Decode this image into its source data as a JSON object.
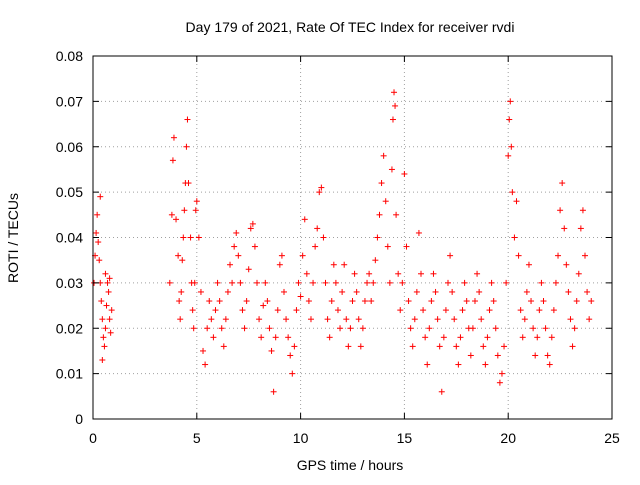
{
  "chart_data": {
    "type": "scatter",
    "title": "Day 179 of 2021, Rate Of TEC Index for receiver rvdi",
    "xlabel": "GPS time / hours",
    "ylabel": "ROTI / TECUs",
    "xlim": [
      0,
      25
    ],
    "ylim": [
      0,
      0.08
    ],
    "x_ticks": [
      0,
      5,
      10,
      15,
      20,
      25
    ],
    "x_tick_labels": [
      "0",
      "5",
      "10",
      "15",
      "20",
      "25"
    ],
    "y_ticks": [
      0,
      0.01,
      0.02,
      0.03,
      0.04,
      0.05,
      0.06,
      0.07,
      0.08
    ],
    "y_tick_labels": [
      "0",
      "0.01",
      "0.02",
      "0.03",
      "0.04",
      "0.05",
      "0.06",
      "0.07",
      "0.08"
    ],
    "grid": true,
    "marker": "+",
    "marker_color": "#ff0000",
    "series": [
      {
        "name": "ROTI",
        "points": [
          [
            0.05,
            0.03
          ],
          [
            0.1,
            0.036
          ],
          [
            0.15,
            0.041
          ],
          [
            0.2,
            0.045
          ],
          [
            0.25,
            0.039
          ],
          [
            0.3,
            0.035
          ],
          [
            0.35,
            0.03
          ],
          [
            0.4,
            0.026
          ],
          [
            0.45,
            0.022
          ],
          [
            0.5,
            0.018
          ],
          [
            0.55,
            0.016
          ],
          [
            0.6,
            0.02
          ],
          [
            0.65,
            0.025
          ],
          [
            0.7,
            0.03
          ],
          [
            0.75,
            0.028
          ],
          [
            0.8,
            0.022
          ],
          [
            0.85,
            0.019
          ],
          [
            0.9,
            0.024
          ],
          [
            0.35,
            0.049
          ],
          [
            0.45,
            0.013
          ],
          [
            0.6,
            0.032
          ],
          [
            0.8,
            0.031
          ],
          [
            3.7,
            0.03
          ],
          [
            3.8,
            0.045
          ],
          [
            3.85,
            0.057
          ],
          [
            3.9,
            0.062
          ],
          [
            4.0,
            0.044
          ],
          [
            4.1,
            0.036
          ],
          [
            4.15,
            0.026
          ],
          [
            4.2,
            0.022
          ],
          [
            4.25,
            0.028
          ],
          [
            4.3,
            0.035
          ],
          [
            4.35,
            0.04
          ],
          [
            4.4,
            0.046
          ],
          [
            4.45,
            0.052
          ],
          [
            4.5,
            0.06
          ],
          [
            4.55,
            0.066
          ],
          [
            4.6,
            0.052
          ],
          [
            4.7,
            0.04
          ],
          [
            4.75,
            0.03
          ],
          [
            4.8,
            0.024
          ],
          [
            4.85,
            0.02
          ],
          [
            4.9,
            0.03
          ],
          [
            4.95,
            0.046
          ],
          [
            5.0,
            0.048
          ],
          [
            5.1,
            0.04
          ],
          [
            5.2,
            0.028
          ],
          [
            5.3,
            0.015
          ],
          [
            5.4,
            0.012
          ],
          [
            5.5,
            0.02
          ],
          [
            5.6,
            0.026
          ],
          [
            5.7,
            0.022
          ],
          [
            5.8,
            0.018
          ],
          [
            5.9,
            0.024
          ],
          [
            6.0,
            0.03
          ],
          [
            6.1,
            0.026
          ],
          [
            6.2,
            0.02
          ],
          [
            6.3,
            0.016
          ],
          [
            6.4,
            0.022
          ],
          [
            6.5,
            0.028
          ],
          [
            6.6,
            0.034
          ],
          [
            6.7,
            0.03
          ],
          [
            6.8,
            0.038
          ],
          [
            6.9,
            0.041
          ],
          [
            7.0,
            0.036
          ],
          [
            7.1,
            0.03
          ],
          [
            7.2,
            0.024
          ],
          [
            7.3,
            0.02
          ],
          [
            7.4,
            0.026
          ],
          [
            7.5,
            0.033
          ],
          [
            7.6,
            0.042
          ],
          [
            7.7,
            0.043
          ],
          [
            7.8,
            0.038
          ],
          [
            7.9,
            0.03
          ],
          [
            8.0,
            0.022
          ],
          [
            8.1,
            0.018
          ],
          [
            8.2,
            0.025
          ],
          [
            8.3,
            0.03
          ],
          [
            8.4,
            0.026
          ],
          [
            8.5,
            0.02
          ],
          [
            8.6,
            0.015
          ],
          [
            8.7,
            0.006
          ],
          [
            8.8,
            0.018
          ],
          [
            8.9,
            0.024
          ],
          [
            9.0,
            0.034
          ],
          [
            9.1,
            0.036
          ],
          [
            9.2,
            0.028
          ],
          [
            9.3,
            0.022
          ],
          [
            9.4,
            0.018
          ],
          [
            9.5,
            0.014
          ],
          [
            9.6,
            0.01
          ],
          [
            9.7,
            0.016
          ],
          [
            9.8,
            0.024
          ],
          [
            9.9,
            0.03
          ],
          [
            10.0,
            0.027
          ],
          [
            10.1,
            0.036
          ],
          [
            10.2,
            0.044
          ],
          [
            10.3,
            0.032
          ],
          [
            10.4,
            0.026
          ],
          [
            10.5,
            0.022
          ],
          [
            10.6,
            0.03
          ],
          [
            10.7,
            0.038
          ],
          [
            10.8,
            0.042
          ],
          [
            10.9,
            0.05
          ],
          [
            11.0,
            0.051
          ],
          [
            11.1,
            0.04
          ],
          [
            11.2,
            0.03
          ],
          [
            11.3,
            0.022
          ],
          [
            11.4,
            0.018
          ],
          [
            11.5,
            0.026
          ],
          [
            11.6,
            0.034
          ],
          [
            11.7,
            0.03
          ],
          [
            11.8,
            0.024
          ],
          [
            11.9,
            0.02
          ],
          [
            12.0,
            0.028
          ],
          [
            12.1,
            0.034
          ],
          [
            12.2,
            0.022
          ],
          [
            12.3,
            0.016
          ],
          [
            12.4,
            0.02
          ],
          [
            12.5,
            0.026
          ],
          [
            12.6,
            0.032
          ],
          [
            12.7,
            0.028
          ],
          [
            12.8,
            0.022
          ],
          [
            12.9,
            0.016
          ],
          [
            13.0,
            0.02
          ],
          [
            13.1,
            0.026
          ],
          [
            13.2,
            0.03
          ],
          [
            13.3,
            0.032
          ],
          [
            13.4,
            0.026
          ],
          [
            13.5,
            0.03
          ],
          [
            13.6,
            0.035
          ],
          [
            13.7,
            0.04
          ],
          [
            13.8,
            0.045
          ],
          [
            13.9,
            0.052
          ],
          [
            14.0,
            0.058
          ],
          [
            14.1,
            0.048
          ],
          [
            14.2,
            0.038
          ],
          [
            14.3,
            0.03
          ],
          [
            14.4,
            0.055
          ],
          [
            14.45,
            0.066
          ],
          [
            14.5,
            0.072
          ],
          [
            14.55,
            0.069
          ],
          [
            14.6,
            0.045
          ],
          [
            14.7,
            0.032
          ],
          [
            14.8,
            0.024
          ],
          [
            14.9,
            0.03
          ],
          [
            15.0,
            0.054
          ],
          [
            15.1,
            0.038
          ],
          [
            15.2,
            0.026
          ],
          [
            15.3,
            0.02
          ],
          [
            15.4,
            0.016
          ],
          [
            15.5,
            0.022
          ],
          [
            15.6,
            0.028
          ],
          [
            15.7,
            0.041
          ],
          [
            15.8,
            0.032
          ],
          [
            15.9,
            0.024
          ],
          [
            16.0,
            0.018
          ],
          [
            16.1,
            0.012
          ],
          [
            16.2,
            0.02
          ],
          [
            16.3,
            0.026
          ],
          [
            16.4,
            0.032
          ],
          [
            16.5,
            0.028
          ],
          [
            16.6,
            0.022
          ],
          [
            16.7,
            0.016
          ],
          [
            16.8,
            0.006
          ],
          [
            16.9,
            0.018
          ],
          [
            17.0,
            0.024
          ],
          [
            17.1,
            0.03
          ],
          [
            17.2,
            0.036
          ],
          [
            17.3,
            0.028
          ],
          [
            17.4,
            0.022
          ],
          [
            17.5,
            0.016
          ],
          [
            17.6,
            0.012
          ],
          [
            17.7,
            0.018
          ],
          [
            17.8,
            0.024
          ],
          [
            17.9,
            0.03
          ],
          [
            18.0,
            0.026
          ],
          [
            18.1,
            0.02
          ],
          [
            18.2,
            0.014
          ],
          [
            18.3,
            0.02
          ],
          [
            18.4,
            0.026
          ],
          [
            18.5,
            0.032
          ],
          [
            18.6,
            0.028
          ],
          [
            18.7,
            0.022
          ],
          [
            18.8,
            0.016
          ],
          [
            18.9,
            0.012
          ],
          [
            19.0,
            0.018
          ],
          [
            19.1,
            0.024
          ],
          [
            19.2,
            0.03
          ],
          [
            19.3,
            0.026
          ],
          [
            19.4,
            0.02
          ],
          [
            19.5,
            0.014
          ],
          [
            19.6,
            0.008
          ],
          [
            19.7,
            0.01
          ],
          [
            19.8,
            0.016
          ],
          [
            19.9,
            0.03
          ],
          [
            20.0,
            0.058
          ],
          [
            20.05,
            0.066
          ],
          [
            20.1,
            0.07
          ],
          [
            20.15,
            0.06
          ],
          [
            20.2,
            0.05
          ],
          [
            20.3,
            0.04
          ],
          [
            20.4,
            0.048
          ],
          [
            20.5,
            0.036
          ],
          [
            20.6,
            0.024
          ],
          [
            20.7,
            0.018
          ],
          [
            20.8,
            0.022
          ],
          [
            20.9,
            0.028
          ],
          [
            21.0,
            0.034
          ],
          [
            21.1,
            0.026
          ],
          [
            21.2,
            0.02
          ],
          [
            21.3,
            0.014
          ],
          [
            21.4,
            0.018
          ],
          [
            21.5,
            0.024
          ],
          [
            21.6,
            0.03
          ],
          [
            21.7,
            0.026
          ],
          [
            21.8,
            0.02
          ],
          [
            21.9,
            0.014
          ],
          [
            22.0,
            0.012
          ],
          [
            22.1,
            0.018
          ],
          [
            22.2,
            0.024
          ],
          [
            22.3,
            0.03
          ],
          [
            22.4,
            0.036
          ],
          [
            22.5,
            0.046
          ],
          [
            22.6,
            0.052
          ],
          [
            22.7,
            0.042
          ],
          [
            22.8,
            0.034
          ],
          [
            22.9,
            0.028
          ],
          [
            23.0,
            0.022
          ],
          [
            23.1,
            0.016
          ],
          [
            23.2,
            0.02
          ],
          [
            23.3,
            0.026
          ],
          [
            23.4,
            0.032
          ],
          [
            23.5,
            0.042
          ],
          [
            23.6,
            0.046
          ],
          [
            23.7,
            0.036
          ],
          [
            23.8,
            0.028
          ],
          [
            23.9,
            0.022
          ],
          [
            24.0,
            0.026
          ]
        ]
      }
    ]
  }
}
